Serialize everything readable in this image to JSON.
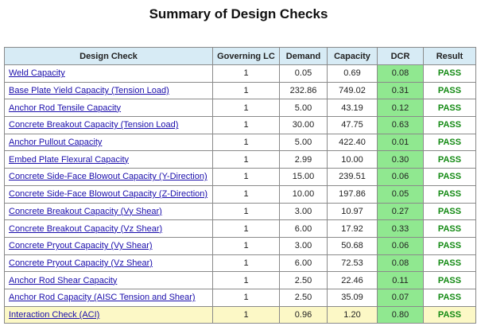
{
  "title": "Summary of Design Checks",
  "table": {
    "header": [
      "Design Check",
      "Governing LC",
      "Demand",
      "Capacity",
      "DCR",
      "Result"
    ],
    "rows": [
      [
        "Weld Capacity",
        "1",
        "0.05",
        "0.69",
        "0.08",
        "PASS"
      ],
      [
        "Base Plate Yield Capacity (Tension Load)",
        "1",
        "232.86",
        "749.02",
        "0.31",
        "PASS"
      ],
      [
        "Anchor Rod Tensile Capacity",
        "1",
        "5.00",
        "43.19",
        "0.12",
        "PASS"
      ],
      [
        "Concrete Breakout Capacity (Tension Load)",
        "1",
        "30.00",
        "47.75",
        "0.63",
        "PASS"
      ],
      [
        "Anchor Pullout Capacity",
        "1",
        "5.00",
        "422.40",
        "0.01",
        "PASS"
      ],
      [
        "Embed Plate Flexural Capacity",
        "1",
        "2.99",
        "10.00",
        "0.30",
        "PASS"
      ],
      [
        "Concrete Side-Face Blowout Capacity (Y-Direction)",
        "1",
        "15.00",
        "239.51",
        "0.06",
        "PASS"
      ],
      [
        "Concrete Side-Face Blowout Capacity (Z-Direction)",
        "1",
        "10.00",
        "197.86",
        "0.05",
        "PASS"
      ],
      [
        "Concrete Breakout Capacity (Vy Shear)",
        "1",
        "3.00",
        "10.97",
        "0.27",
        "PASS"
      ],
      [
        "Concrete Breakout Capacity (Vz Shear)",
        "1",
        "6.00",
        "17.92",
        "0.33",
        "PASS"
      ],
      [
        "Concrete Pryout Capacity (Vy Shear)",
        "1",
        "3.00",
        "50.68",
        "0.06",
        "PASS"
      ],
      [
        "Concrete Pryout Capacity (Vz Shear)",
        "1",
        "6.00",
        "72.53",
        "0.08",
        "PASS"
      ],
      [
        "Anchor Rod Shear Capacity",
        "1",
        "2.50",
        "22.46",
        "0.11",
        "PASS"
      ],
      [
        "Anchor Rod Capacity (AISC Tension and Shear)",
        "1",
        "2.50",
        "35.09",
        "0.07",
        "PASS"
      ],
      [
        "Interaction Check (ACI)",
        "1",
        "0.96",
        "1.20",
        "0.80",
        "PASS"
      ]
    ]
  }
}
